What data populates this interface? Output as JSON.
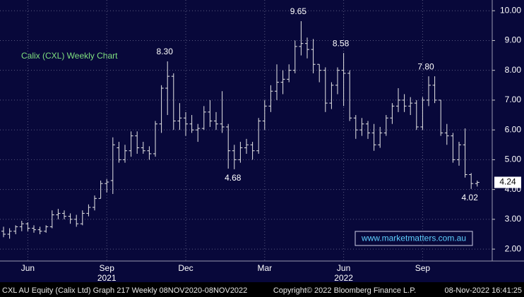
{
  "chart_data": {
    "type": "ohlc",
    "title": "Calix (CXL) Weekly Chart",
    "watermark": "www.marketmatters.com.au",
    "footer_left": "CXL AU Equity (Calix Ltd) Graph 217  Weekly 08NOV2020-08NOV2022",
    "footer_center": "Copyright© 2022 Bloomberg Finance L.P.",
    "footer_right": "08-Nov-2022 16:41:25",
    "categories": [
      null,
      null,
      null,
      null,
      "Jun",
      null,
      null,
      null,
      null,
      null,
      null,
      null,
      null,
      null,
      null,
      null,
      null,
      "Sep",
      null,
      null,
      null,
      null,
      null,
      null,
      null,
      null,
      null,
      null,
      null,
      null,
      "Dec",
      null,
      null,
      null,
      null,
      null,
      null,
      null,
      null,
      null,
      null,
      null,
      null,
      "Mar",
      null,
      null,
      null,
      null,
      null,
      null,
      null,
      null,
      null,
      null,
      null,
      null,
      "Jun",
      null,
      null,
      null,
      null,
      null,
      null,
      null,
      null,
      null,
      null,
      null,
      null,
      "Sep",
      null,
      null,
      null,
      null,
      null,
      null,
      null,
      null,
      null
    ],
    "years": [
      null,
      null,
      null,
      null,
      null,
      null,
      null,
      null,
      null,
      null,
      null,
      null,
      null,
      null,
      null,
      null,
      null,
      "2021",
      null,
      null,
      null,
      null,
      null,
      null,
      null,
      null,
      null,
      null,
      null,
      null,
      null,
      null,
      null,
      null,
      null,
      null,
      null,
      null,
      null,
      null,
      null,
      null,
      null,
      null,
      null,
      null,
      null,
      null,
      null,
      null,
      null,
      null,
      null,
      null,
      null,
      null,
      "2022",
      null,
      null,
      null,
      null,
      null,
      null,
      null,
      null,
      null,
      null,
      null,
      null,
      null,
      null,
      null,
      null,
      null,
      null,
      null,
      null,
      null,
      null
    ],
    "open": [
      2.6,
      2.5,
      2.6,
      2.75,
      2.85,
      2.7,
      2.65,
      2.6,
      2.75,
      3.15,
      3.2,
      3.1,
      3.0,
      2.85,
      3.2,
      3.4,
      3.7,
      4.2,
      4.3,
      5.4,
      5.0,
      5.3,
      5.8,
      5.4,
      5.3,
      5.2,
      6.2,
      7.4,
      7.8,
      6.3,
      6.4,
      6.2,
      6.0,
      6.05,
      6.6,
      6.3,
      6.2,
      6.1,
      5.3,
      5.0,
      5.4,
      5.5,
      5.3,
      6.3,
      6.8,
      7.3,
      7.6,
      7.7,
      8.0,
      8.8,
      8.9,
      8.7,
      8.2,
      8.0,
      6.9,
      7.5,
      8.0,
      7.9,
      6.4,
      6.0,
      6.2,
      5.9,
      5.5,
      5.9,
      6.4,
      6.8,
      7.0,
      6.8,
      6.9,
      6.1,
      7.0,
      7.5,
      7.0,
      5.9,
      5.8,
      5.0,
      5.5,
      4.5,
      4.2
    ],
    "high": [
      2.75,
      2.7,
      2.8,
      2.95,
      2.9,
      2.8,
      2.75,
      2.8,
      3.3,
      3.35,
      3.3,
      3.2,
      3.15,
      3.3,
      3.5,
      3.8,
      4.3,
      4.35,
      5.75,
      5.6,
      5.5,
      5.95,
      5.95,
      5.6,
      5.45,
      6.3,
      7.5,
      8.3,
      7.9,
      6.9,
      6.6,
      6.5,
      6.2,
      6.8,
      7.0,
      6.6,
      7.3,
      6.2,
      5.5,
      5.6,
      5.7,
      5.6,
      6.4,
      7.0,
      7.5,
      8.2,
      8.0,
      8.2,
      9.0,
      9.65,
      9.1,
      9.05,
      8.2,
      8.1,
      7.6,
      8.1,
      8.58,
      8.0,
      6.5,
      6.4,
      6.3,
      6.2,
      6.1,
      6.5,
      6.9,
      7.4,
      7.2,
      7.1,
      7.0,
      7.1,
      7.8,
      7.8,
      7.0,
      6.2,
      5.9,
      5.6,
      6.05,
      4.55,
      4.3
    ],
    "low": [
      2.4,
      2.35,
      2.5,
      2.6,
      2.6,
      2.55,
      2.5,
      2.55,
      2.7,
      3.0,
      3.0,
      2.85,
      2.75,
      2.8,
      3.1,
      3.3,
      3.7,
      3.9,
      3.85,
      4.9,
      4.9,
      5.1,
      5.2,
      5.2,
      5.0,
      5.1,
      5.9,
      6.5,
      6.0,
      6.0,
      5.8,
      5.9,
      5.6,
      6.0,
      6.1,
      6.0,
      5.9,
      4.7,
      4.68,
      4.9,
      5.2,
      5.0,
      5.2,
      6.0,
      6.6,
      7.0,
      7.2,
      7.6,
      7.9,
      8.5,
      8.4,
      7.9,
      7.6,
      6.6,
      6.7,
      7.2,
      6.8,
      6.3,
      5.7,
      5.8,
      5.7,
      5.3,
      5.4,
      5.8,
      6.2,
      6.6,
      6.6,
      6.5,
      6.0,
      6.0,
      6.8,
      6.9,
      5.8,
      5.5,
      4.9,
      4.8,
      4.4,
      4.02,
      4.1
    ],
    "close": [
      2.5,
      2.6,
      2.75,
      2.85,
      2.7,
      2.65,
      2.6,
      2.75,
      3.15,
      3.2,
      3.1,
      3.0,
      2.85,
      3.2,
      3.4,
      3.7,
      4.2,
      4.25,
      5.5,
      5.0,
      5.3,
      5.8,
      5.4,
      5.3,
      5.2,
      6.2,
      7.4,
      7.8,
      6.3,
      6.4,
      6.2,
      6.0,
      6.05,
      6.6,
      6.3,
      6.2,
      6.1,
      5.3,
      5.0,
      5.4,
      5.5,
      5.3,
      6.3,
      6.8,
      7.3,
      7.6,
      7.7,
      8.0,
      8.8,
      8.9,
      8.7,
      8.2,
      8.0,
      6.9,
      7.5,
      8.0,
      7.9,
      6.4,
      6.0,
      6.2,
      5.9,
      5.5,
      5.9,
      6.4,
      6.8,
      7.0,
      6.8,
      6.9,
      6.1,
      7.0,
      7.5,
      7.0,
      5.9,
      5.8,
      5.0,
      5.5,
      4.5,
      4.2,
      4.24
    ],
    "high_labels": [
      null,
      null,
      null,
      null,
      null,
      null,
      null,
      null,
      null,
      null,
      null,
      null,
      null,
      null,
      null,
      null,
      null,
      null,
      null,
      null,
      null,
      null,
      null,
      null,
      null,
      null,
      null,
      "8.30",
      null,
      null,
      null,
      null,
      null,
      null,
      null,
      null,
      null,
      null,
      null,
      null,
      null,
      null,
      null,
      null,
      null,
      null,
      null,
      null,
      null,
      "9.65",
      null,
      null,
      null,
      null,
      null,
      null,
      "8.58",
      null,
      null,
      null,
      null,
      null,
      null,
      null,
      null,
      null,
      null,
      null,
      null,
      null,
      "7.80",
      null,
      null,
      null,
      null,
      null,
      null,
      null,
      null
    ],
    "low_labels": [
      null,
      null,
      null,
      null,
      null,
      null,
      null,
      null,
      null,
      null,
      null,
      null,
      null,
      null,
      null,
      null,
      null,
      null,
      null,
      null,
      null,
      null,
      null,
      null,
      null,
      null,
      null,
      null,
      null,
      null,
      null,
      null,
      null,
      null,
      null,
      null,
      null,
      null,
      "4.68",
      null,
      null,
      null,
      null,
      null,
      null,
      null,
      null,
      null,
      null,
      null,
      null,
      null,
      null,
      null,
      null,
      null,
      null,
      null,
      null,
      null,
      null,
      null,
      null,
      null,
      null,
      null,
      null,
      null,
      null,
      null,
      null,
      null,
      null,
      null,
      null,
      null,
      null,
      "4.02",
      null
    ],
    "last_label": "4.24",
    "color": "#e6e6e6",
    "ylim": [
      1.6,
      10.36
    ],
    "yticks": [
      {
        "value": 2,
        "label": "2.00"
      },
      {
        "value": 3,
        "label": "3.00"
      },
      {
        "value": 4,
        "label": "4.00"
      },
      {
        "value": 5,
        "label": "5.00"
      },
      {
        "value": 6,
        "label": "6.00"
      },
      {
        "value": 7,
        "label": "7.00"
      },
      {
        "value": 8,
        "label": "8.00"
      },
      {
        "value": 9,
        "label": "9.00"
      },
      {
        "value": 10,
        "label": "10.00"
      }
    ],
    "grid": true
  }
}
